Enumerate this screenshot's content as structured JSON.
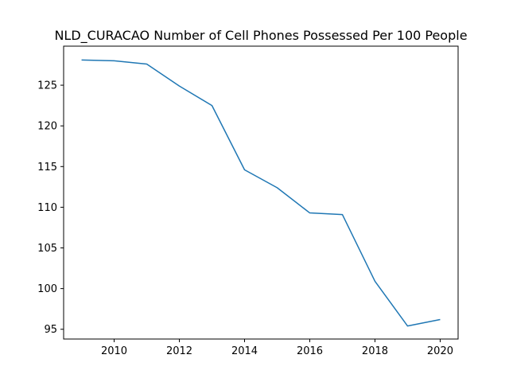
{
  "chart_data": {
    "type": "line",
    "title": "NLD_CURACAO Number of Cell Phones Possessed Per 100 People",
    "xlabel": "",
    "ylabel": "",
    "x": [
      2009,
      2010,
      2011,
      2012,
      2013,
      2014,
      2015,
      2016,
      2017,
      2018,
      2019,
      2020
    ],
    "series": [
      {
        "values": [
          128.1,
          128.0,
          127.6,
          124.9,
          122.5,
          114.6,
          112.4,
          109.3,
          109.1,
          100.9,
          95.4,
          96.2
        ]
      }
    ],
    "xlim": [
      2008.45,
      2020.55
    ],
    "ylim": [
      93.8,
      129.8
    ],
    "xticks": [
      2010,
      2012,
      2014,
      2016,
      2018,
      2020
    ],
    "yticks": [
      95,
      100,
      105,
      110,
      115,
      120,
      125
    ],
    "grid": false,
    "legend": "none",
    "line_color": "#1f77b4"
  }
}
